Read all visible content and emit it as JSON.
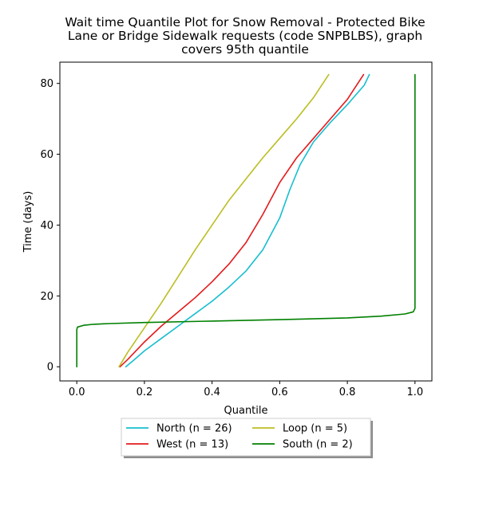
{
  "chart_data": {
    "type": "line",
    "title_lines": [
      "Wait time Quantile Plot for Snow Removal - Protected Bike",
      "Lane or Bridge Sidewalk  requests (code SNPBLBS), graph",
      "covers 95th quantile"
    ],
    "xlabel": "Quantile",
    "ylabel": "Time (days)",
    "xlim": [
      -0.05,
      1.05
    ],
    "ylim": [
      -4,
      86
    ],
    "x_ticks": [
      0.0,
      0.2,
      0.4,
      0.6,
      0.8,
      1.0
    ],
    "x_tick_labels": [
      "0.0",
      "0.2",
      "0.4",
      "0.6",
      "0.8",
      "1.0"
    ],
    "y_ticks": [
      0,
      20,
      40,
      60,
      80
    ],
    "y_tick_labels": [
      "0",
      "20",
      "40",
      "60",
      "80"
    ],
    "grid": false,
    "legend_placement": "below",
    "series": [
      {
        "name": "North (n = 26)",
        "color": "#17becf",
        "points": [
          [
            0.145,
            0
          ],
          [
            0.17,
            2
          ],
          [
            0.2,
            4.5
          ],
          [
            0.25,
            8
          ],
          [
            0.3,
            11.5
          ],
          [
            0.35,
            15
          ],
          [
            0.4,
            18.5
          ],
          [
            0.45,
            22.5
          ],
          [
            0.5,
            27
          ],
          [
            0.55,
            33
          ],
          [
            0.6,
            42
          ],
          [
            0.63,
            50
          ],
          [
            0.66,
            57
          ],
          [
            0.7,
            63.5
          ],
          [
            0.75,
            69
          ],
          [
            0.8,
            74
          ],
          [
            0.85,
            79.5
          ],
          [
            0.865,
            82.5
          ]
        ]
      },
      {
        "name": "West (n = 13)",
        "color": "#e41a1c",
        "points": [
          [
            0.128,
            0
          ],
          [
            0.15,
            2
          ],
          [
            0.2,
            7
          ],
          [
            0.25,
            11.5
          ],
          [
            0.3,
            15.5
          ],
          [
            0.35,
            19.5
          ],
          [
            0.4,
            24
          ],
          [
            0.45,
            29
          ],
          [
            0.5,
            35
          ],
          [
            0.55,
            43
          ],
          [
            0.6,
            52
          ],
          [
            0.65,
            59
          ],
          [
            0.7,
            64.5
          ],
          [
            0.75,
            70
          ],
          [
            0.8,
            75.5
          ],
          [
            0.848,
            82.5
          ]
        ]
      },
      {
        "name": "Loop (n = 5)",
        "color": "#bcbd22",
        "points": [
          [
            0.125,
            0
          ],
          [
            0.15,
            4
          ],
          [
            0.2,
            11
          ],
          [
            0.25,
            18
          ],
          [
            0.3,
            25.5
          ],
          [
            0.35,
            33
          ],
          [
            0.4,
            40
          ],
          [
            0.45,
            47
          ],
          [
            0.5,
            53
          ],
          [
            0.55,
            59
          ],
          [
            0.6,
            64.5
          ],
          [
            0.65,
            70
          ],
          [
            0.7,
            76
          ],
          [
            0.745,
            82.5
          ]
        ]
      },
      {
        "name": "South (n = 2)",
        "color": "#008000",
        "points": [
          [
            0,
            0
          ],
          [
            0,
            10.5
          ],
          [
            0.002,
            11.2
          ],
          [
            0.02,
            11.7
          ],
          [
            0.05,
            12
          ],
          [
            0.1,
            12.2
          ],
          [
            0.2,
            12.5
          ],
          [
            0.4,
            12.9
          ],
          [
            0.6,
            13.3
          ],
          [
            0.8,
            13.8
          ],
          [
            0.9,
            14.3
          ],
          [
            0.97,
            14.9
          ],
          [
            0.995,
            15.5
          ],
          [
            1.0,
            16.5
          ],
          [
            1.0,
            30
          ],
          [
            1.0,
            82.5
          ]
        ]
      }
    ]
  }
}
